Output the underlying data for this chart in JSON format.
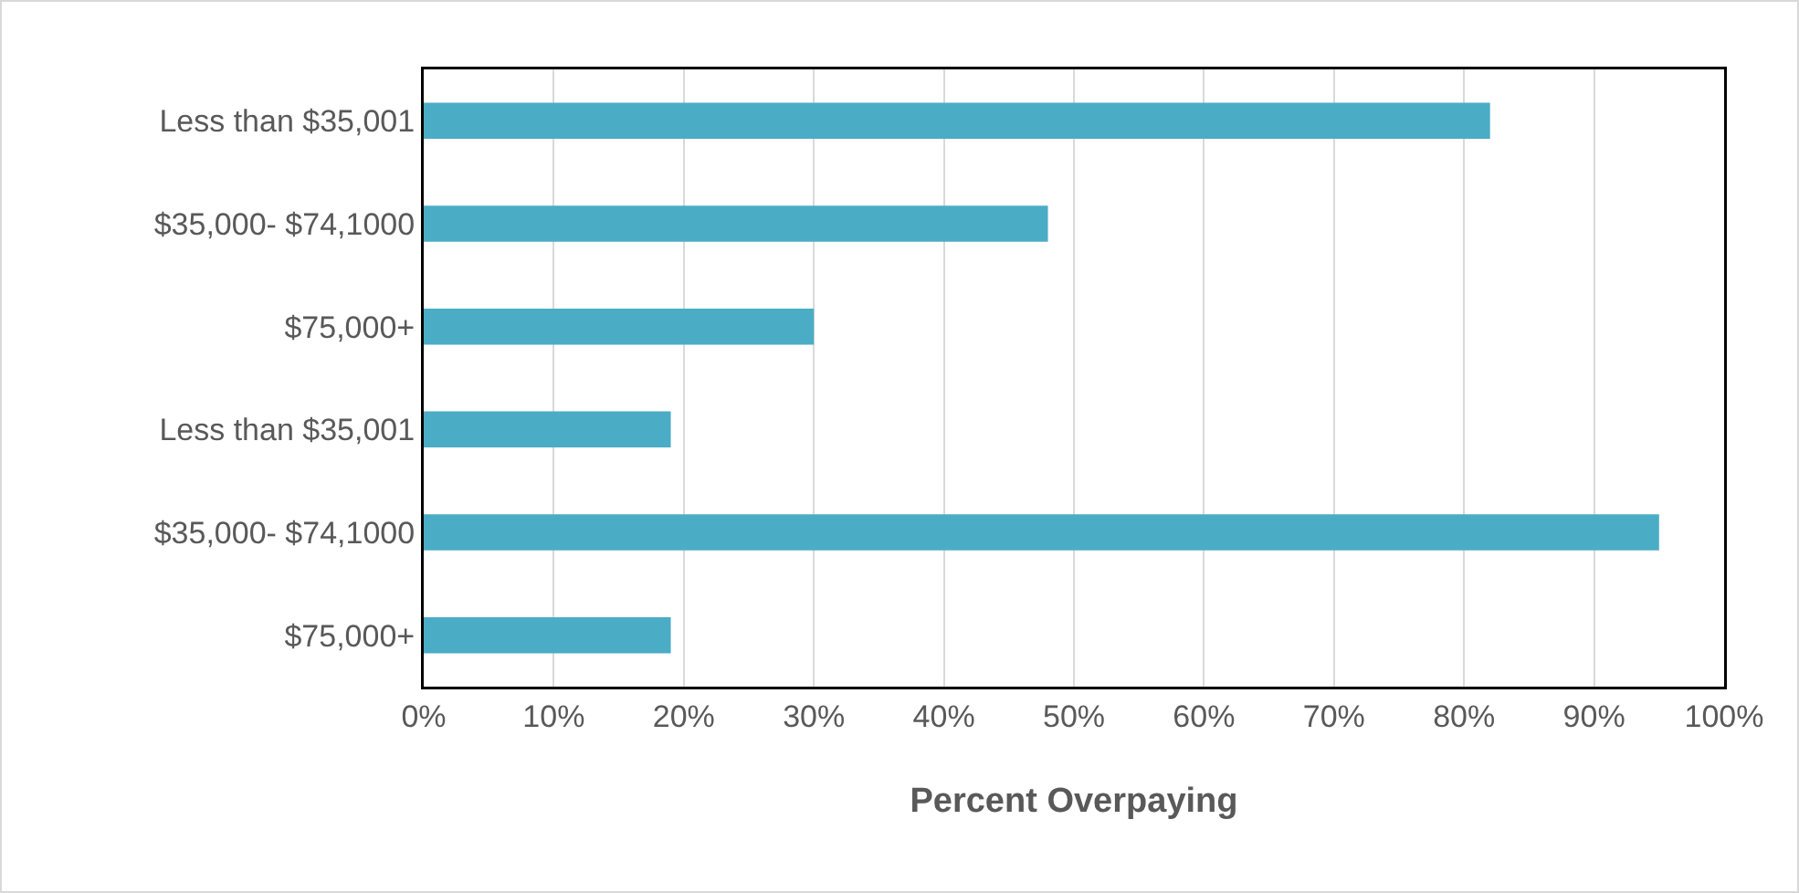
{
  "chart_data": {
    "type": "bar",
    "orientation": "horizontal",
    "xlabel": "Percent Overpaying",
    "categories": [
      "Less than $35,001",
      "$35,000- $74,1000",
      "$75,000+",
      "Less than $35,001",
      "$35,000- $74,1000",
      "$75,000+"
    ],
    "values": [
      82,
      48,
      30,
      19,
      95,
      19
    ],
    "color": "#4bacc6",
    "xlim": [
      0,
      100
    ],
    "xticks": [
      {
        "value": 0,
        "label": "0%"
      },
      {
        "value": 10,
        "label": "10%"
      },
      {
        "value": 20,
        "label": "20%"
      },
      {
        "value": 30,
        "label": "30%"
      },
      {
        "value": 40,
        "label": "40%"
      },
      {
        "value": 50,
        "label": "50%"
      },
      {
        "value": 60,
        "label": "60%"
      },
      {
        "value": 70,
        "label": "70%"
      },
      {
        "value": 80,
        "label": "80%"
      },
      {
        "value": 90,
        "label": "90%"
      },
      {
        "value": 100,
        "label": "100%"
      }
    ],
    "grid": "x",
    "legend": false
  }
}
